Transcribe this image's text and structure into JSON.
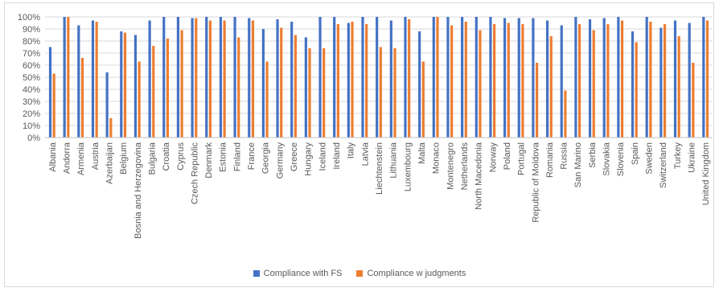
{
  "chart_data": {
    "type": "bar",
    "categories": [
      "Albania",
      "Andorra",
      "Armenia",
      "Austria",
      "Azerbaijan",
      "Belgium",
      "Bosnia and Herzegovina",
      "Bulgaria",
      "Croatia",
      "Cyprus",
      "Czech Republic",
      "Denmark",
      "Estonia",
      "Finland",
      "France",
      "Georgia",
      "Germany",
      "Greece",
      "Hungary",
      "Iceland",
      "Ireland",
      "Italy",
      "Latvia",
      "Liechtenstein",
      "Lithuania",
      "Luxembourg",
      "Malta",
      "Monaco",
      "Montenegro",
      "Netherlands",
      "North Macedonia",
      "Norway",
      "Poland",
      "Portugal",
      "Republic of Moldova",
      "Romania",
      "Russia",
      "San Marino",
      "Serbia",
      "Slovakia",
      "Slovenia",
      "Spain",
      "Sweden",
      "Switzerland",
      "Turkey",
      "Ukraine",
      "United Kingdom"
    ],
    "series": [
      {
        "name": "Compliance with FS",
        "color": "#4472c4",
        "values": [
          75,
          100,
          93,
          97,
          54,
          88,
          85,
          97,
          100,
          100,
          99,
          100,
          100,
          100,
          99,
          90,
          98,
          96,
          83,
          100,
          100,
          95,
          100,
          100,
          97,
          100,
          88,
          100,
          100,
          100,
          100,
          100,
          99,
          99,
          99,
          97,
          93,
          100,
          98,
          99,
          100,
          88,
          100,
          91,
          97,
          95,
          100
        ]
      },
      {
        "name": "Compliance w judgments",
        "color": "#ed7d31",
        "values": [
          53,
          100,
          66,
          96,
          16,
          87,
          63,
          76,
          82,
          89,
          99,
          97,
          97,
          83,
          97,
          63,
          91,
          85,
          74,
          74,
          94,
          96,
          94,
          75,
          74,
          98,
          63,
          100,
          93,
          96,
          89,
          94,
          95,
          94,
          62,
          84,
          39,
          94,
          89,
          94,
          97,
          79,
          96,
          94,
          84,
          62,
          97
        ]
      }
    ],
    "ylim": [
      0,
      100
    ],
    "yticks": [
      "0%",
      "10%",
      "20%",
      "30%",
      "40%",
      "50%",
      "60%",
      "70%",
      "80%",
      "90%",
      "100%"
    ],
    "grid": true,
    "legend": "bottom",
    "title": "",
    "xlabel": "",
    "ylabel": ""
  }
}
